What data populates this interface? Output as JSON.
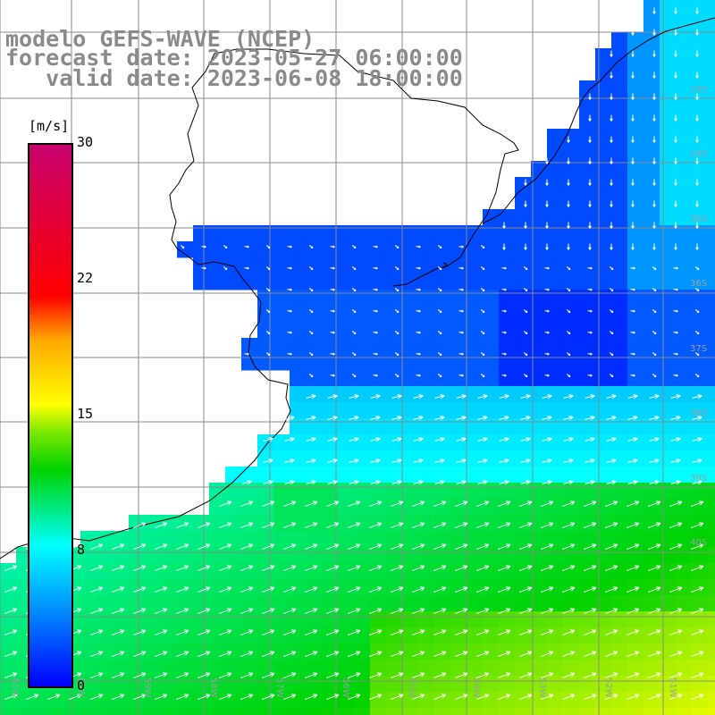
{
  "header": {
    "title": "modelo GEFS-WAVE (NCEP)",
    "forecast_date": "forecast date: 2023-05-27 06:00:00",
    "valid_date": "   valid date: 2023-06-08 18:00:00"
  },
  "colorbar": {
    "unit": "[m/s]",
    "ticks": [
      "30",
      "22",
      "15",
      "8",
      "0"
    ],
    "colors": [
      "#0000ff",
      "#0096ff",
      "#00ffff",
      "#00d200",
      "#ffff00",
      "#ffa800",
      "#ff0000",
      "#c8006e"
    ]
  },
  "map": {
    "lat_labels": [
      "33S",
      "34S",
      "35S",
      "36S",
      "37S",
      "38S",
      "39S",
      "40S"
    ],
    "lon_labels": [
      "61W",
      "60W",
      "59W",
      "58W",
      "57W",
      "56W",
      "55W",
      "54W",
      "53W",
      "52W",
      "51W"
    ],
    "land_color": "#ffffff",
    "grid_color": "#888888",
    "arrow_color": "#ffffff"
  }
}
